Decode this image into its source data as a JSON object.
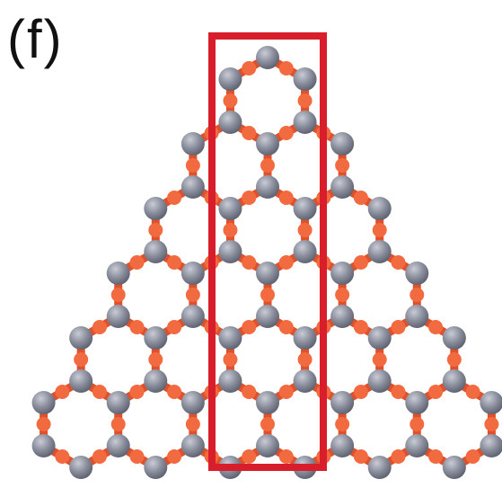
{
  "panel_label": "(f)",
  "colors": {
    "atom": "#7d8190",
    "atom_highlight": "#c9ccd6",
    "bond": "#e0502a",
    "bond_highlight": "#f26a40",
    "outline_box": "#d81e2a",
    "background": "#ffffff"
  },
  "structure": {
    "lattice": "triangular-flake",
    "hexagon_rows": 6
  }
}
